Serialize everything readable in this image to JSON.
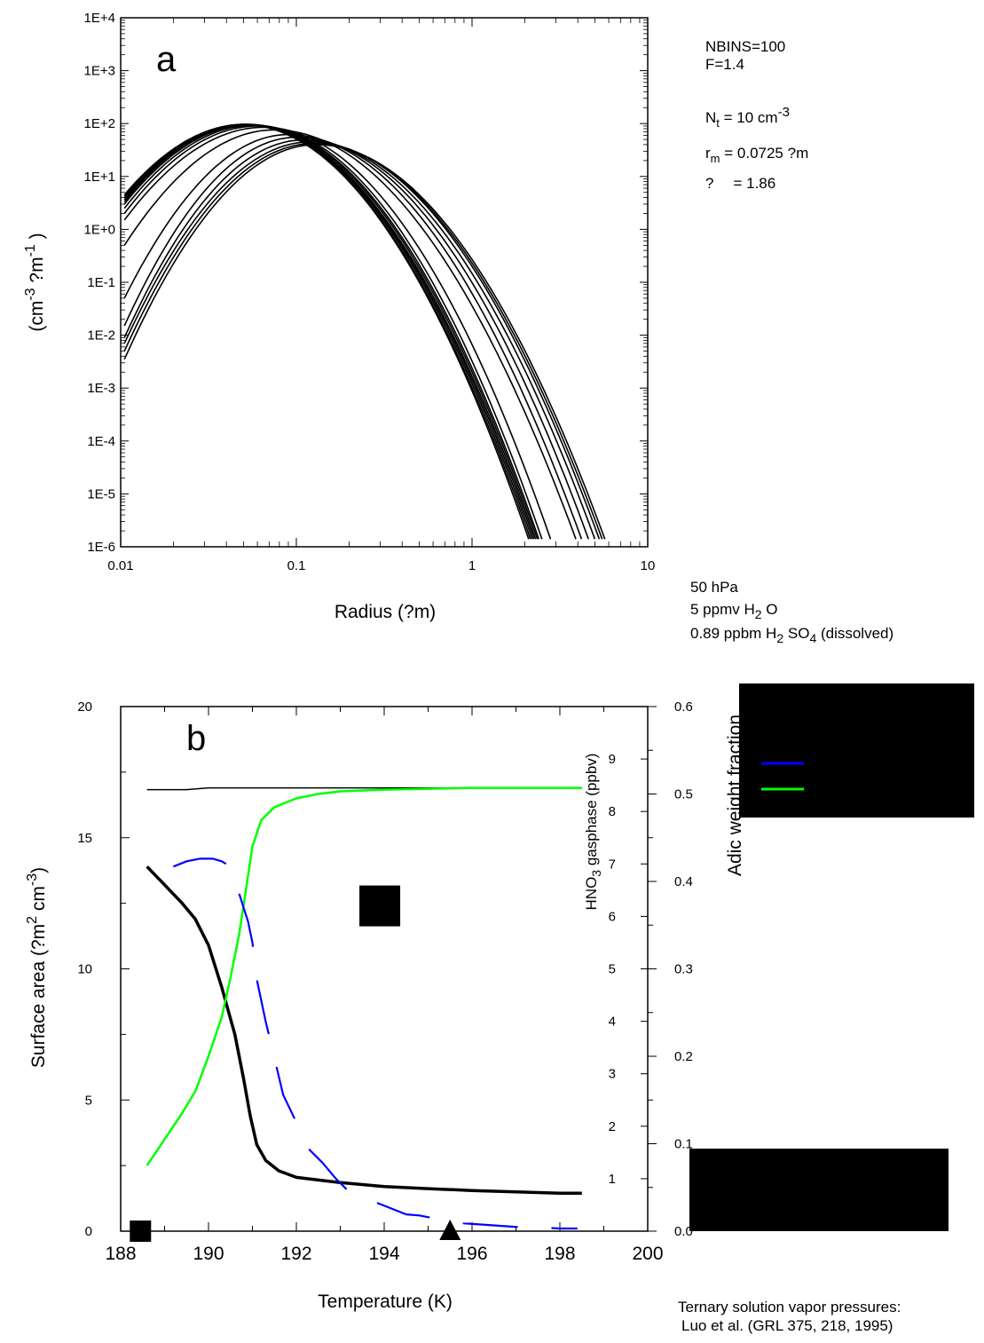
{
  "panel_a": {
    "letter": "a",
    "info": {
      "nbins": "NBINS=100",
      "f": "F=1.4",
      "nt_main": "N",
      "nt_sub": "t",
      "nt_value": " =  10 cm",
      "nt_sup": "-3",
      "rm_main": "r",
      "rm_sub": "m",
      "rm_value": " =  0.0725 ?m",
      "sigma_symbol": "?",
      "sigma_value": "= 1.86"
    },
    "conditions": {
      "pressure": "50 hPa",
      "water": "5 ppmv H",
      "water_sub": "2",
      "water_tail": " O",
      "acid": "0.89 ppbm H",
      "acid_sub1": "2",
      "acid_mid": " SO",
      "acid_sub2": "4",
      "acid_tail": "  (dissolved)"
    }
  },
  "panel_b": {
    "letter": "b",
    "legend_colors": [
      "#000000",
      "#0000ff",
      "#00ff00"
    ],
    "footnote_line1": "Ternary solution vapor pressures:",
    "footnote_line2": "Luo et al. (GRL 375, 218, 1995)"
  },
  "chart_data": [
    {
      "type": "line",
      "xlabel": "Radius (?m)",
      "ylabel_parts": [
        "(cm",
        "-3",
        " ?m",
        "-1",
        " )"
      ],
      "x_scale": "log",
      "y_scale": "log",
      "xlim": [
        0.01,
        10
      ],
      "ylim": [
        1e-06,
        10000
      ],
      "x_ticks": [
        "0.01",
        "0.1",
        "1",
        "10"
      ],
      "y_ticks": [
        "1E-6",
        "1E-5",
        "1E-4",
        "1E-3",
        "1E-2",
        "1E-1",
        "1E+0",
        "1E+1",
        "1E+2",
        "1E+3",
        "1E+4"
      ],
      "series_params": [
        {
          "peak_r": 0.05,
          "peak_v": 95,
          "left_end": 4.5,
          "right_end_r": 2.1
        },
        {
          "peak_r": 0.05,
          "peak_v": 96,
          "left_end": 4.2,
          "right_end_r": 2.15
        },
        {
          "peak_r": 0.051,
          "peak_v": 97,
          "left_end": 3.9,
          "right_end_r": 2.2
        },
        {
          "peak_r": 0.052,
          "peak_v": 97,
          "left_end": 3.6,
          "right_end_r": 2.25
        },
        {
          "peak_r": 0.053,
          "peak_v": 96,
          "left_end": 3.3,
          "right_end_r": 2.3
        },
        {
          "peak_r": 0.055,
          "peak_v": 95,
          "left_end": 3.0,
          "right_end_r": 2.35
        },
        {
          "peak_r": 0.057,
          "peak_v": 93,
          "left_end": 2.5,
          "right_end_r": 2.4
        },
        {
          "peak_r": 0.06,
          "peak_v": 90,
          "left_end": 2.0,
          "right_end_r": 2.5
        },
        {
          "peak_r": 0.065,
          "peak_v": 85,
          "left_end": 1.5,
          "right_end_r": 2.8
        },
        {
          "peak_r": 0.075,
          "peak_v": 76,
          "left_end": 0.5,
          "right_end_r": 3.9
        },
        {
          "peak_r": 0.09,
          "peak_v": 62,
          "left_end": 0.05,
          "right_end_r": 4.2
        },
        {
          "peak_r": 0.1,
          "peak_v": 55,
          "left_end": 0.015,
          "right_end_r": 4.6
        },
        {
          "peak_r": 0.11,
          "peak_v": 49,
          "left_end": 0.009,
          "right_end_r": 5.0
        },
        {
          "peak_r": 0.12,
          "peak_v": 45,
          "left_end": 0.007,
          "right_end_r": 5.3
        },
        {
          "peak_r": 0.125,
          "peak_v": 42,
          "left_end": 0.005,
          "right_end_r": 5.5
        },
        {
          "peak_r": 0.13,
          "peak_v": 40,
          "left_end": 0.0035,
          "right_end_r": 5.7
        }
      ]
    },
    {
      "type": "line",
      "xlabel": "Temperature (K)",
      "ylabel_parts": [
        "Surface area (?m",
        "2",
        " cm",
        "-3",
        ")"
      ],
      "y2label_parts": [
        "HNO",
        "3",
        " gasphase (ppbv)"
      ],
      "y3label": "Adic weight fraction",
      "xlim": [
        188,
        200
      ],
      "ylim": [
        0,
        20
      ],
      "y2lim": [
        0,
        10
      ],
      "y3lim": [
        0,
        0.6
      ],
      "x_ticks": [
        "188",
        "190",
        "192",
        "194",
        "196",
        "198",
        "200"
      ],
      "y_ticks": [
        "0",
        "5",
        "10",
        "15",
        "20"
      ],
      "y2_ticks": [
        "1",
        "2",
        "3",
        "4",
        "5",
        "6",
        "7",
        "8",
        "9"
      ],
      "y3_ticks": [
        "0.0",
        "0.1",
        "0.2",
        "0.3",
        "0.4",
        "0.5",
        "0.6"
      ],
      "series": [
        {
          "color": "#000000",
          "width": 3.5,
          "axis": "left",
          "x": [
            188.6,
            189.0,
            189.4,
            189.7,
            190.0,
            190.3,
            190.6,
            190.8,
            190.95,
            191.1,
            191.3,
            191.6,
            192.0,
            192.5,
            193.0,
            194.0,
            195.0,
            196.0,
            197.0,
            198.0,
            198.5
          ],
          "y": [
            13.9,
            13.2,
            12.5,
            11.9,
            10.9,
            9.3,
            7.5,
            5.8,
            4.4,
            3.3,
            2.7,
            2.3,
            2.05,
            1.95,
            1.85,
            1.7,
            1.62,
            1.55,
            1.5,
            1.45,
            1.45
          ]
        },
        {
          "color": "#000000",
          "width": 1.5,
          "axis": "y3",
          "x": [
            188.6,
            189.5,
            190.0,
            192.0,
            195.0,
            198.5
          ],
          "y": [
            0.505,
            0.505,
            0.507,
            0.507,
            0.507,
            0.507
          ]
        },
        {
          "color": "#00ff00",
          "width": 2.5,
          "axis": "y3",
          "x": [
            188.6,
            189.0,
            189.4,
            189.7,
            190.0,
            190.3,
            190.5,
            190.7,
            190.85,
            191.0,
            191.2,
            191.5,
            192.0,
            192.5,
            193.0,
            194.0,
            195.0,
            196.0,
            197.0,
            198.5
          ],
          "y": [
            0.075,
            0.105,
            0.135,
            0.16,
            0.2,
            0.245,
            0.29,
            0.34,
            0.39,
            0.44,
            0.47,
            0.485,
            0.495,
            0.5,
            0.503,
            0.505,
            0.506,
            0.507,
            0.507,
            0.507
          ]
        },
        {
          "color": "#0000ff",
          "width": 2.2,
          "axis": "y2",
          "dashed": true,
          "x": [
            189.2,
            189.5,
            189.8,
            190.1,
            190.3,
            190.5,
            190.9,
            191.0,
            191.1,
            191.3,
            191.5,
            191.7,
            192.3,
            192.6,
            192.9,
            193.2,
            194.5,
            194.8,
            195.1,
            195.5,
            195.8,
            197.2,
            197.6,
            198.0,
            198.4
          ],
          "y": [
            6.95,
            7.05,
            7.1,
            7.1,
            7.05,
            6.95,
            5.9,
            5.5,
            4.8,
            4.0,
            3.3,
            2.6,
            1.55,
            1.3,
            1.0,
            0.75,
            0.32,
            0.3,
            0.25,
            0.2,
            0.15,
            0.07,
            0.07,
            0.05,
            0.05
          ]
        }
      ],
      "markers": [
        {
          "shape": "square",
          "x": 188.45,
          "y": 0
        },
        {
          "shape": "square",
          "x": 193.9,
          "y": 12.4
        },
        {
          "shape": "triangle",
          "x": 195.5,
          "y": 0
        }
      ]
    }
  ]
}
